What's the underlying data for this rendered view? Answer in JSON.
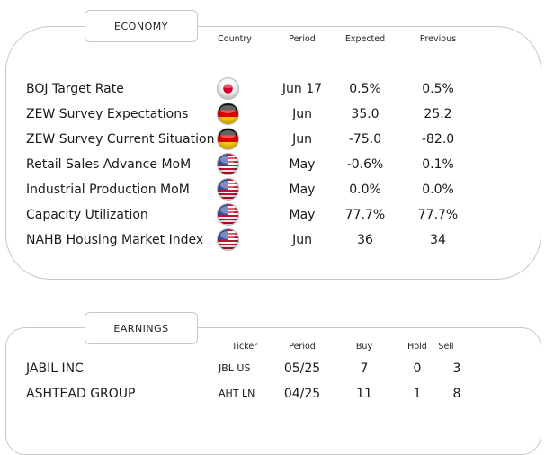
{
  "economy": {
    "title": "ECONOMY",
    "headers": {
      "country": "Country",
      "period": "Period",
      "expected": "Expected",
      "previous": "Previous"
    },
    "rows": [
      {
        "name": "BOJ Target Rate",
        "flag": "japan-flag-icon",
        "period": "Jun 17",
        "expected": "0.5%",
        "previous": "0.5%"
      },
      {
        "name": "ZEW Survey Expectations",
        "flag": "germany-flag-icon",
        "period": "Jun",
        "expected": "35.0",
        "previous": "25.2"
      },
      {
        "name": "ZEW Survey Current Situation",
        "flag": "germany-flag-icon",
        "period": "Jun",
        "expected": "-75.0",
        "previous": "-82.0"
      },
      {
        "name": "Retail Sales Advance MoM",
        "flag": "usa-flag-icon",
        "period": "May",
        "expected": "-0.6%",
        "previous": "0.1%"
      },
      {
        "name": "Industrial Production MoM",
        "flag": "usa-flag-icon",
        "period": "May",
        "expected": "0.0%",
        "previous": "0.0%"
      },
      {
        "name": "Capacity Utilization",
        "flag": "usa-flag-icon",
        "period": "May",
        "expected": "77.7%",
        "previous": "77.7%"
      },
      {
        "name": "NAHB Housing Market Index",
        "flag": "usa-flag-icon",
        "period": "Jun",
        "expected": "36",
        "previous": "34"
      }
    ]
  },
  "earnings": {
    "title": "EARNINGS",
    "headers": {
      "ticker": "Ticker",
      "period": "Period",
      "buy": "Buy",
      "hold": "Hold",
      "sell": "Sell"
    },
    "rows": [
      {
        "name": "JABIL INC",
        "ticker": "JBL US",
        "period": "05/25",
        "buy": "7",
        "hold": "0",
        "sell": "3"
      },
      {
        "name": "ASHTEAD GROUP",
        "ticker": "AHT LN",
        "period": "04/25",
        "buy": "11",
        "hold": "1",
        "sell": "8"
      }
    ]
  }
}
